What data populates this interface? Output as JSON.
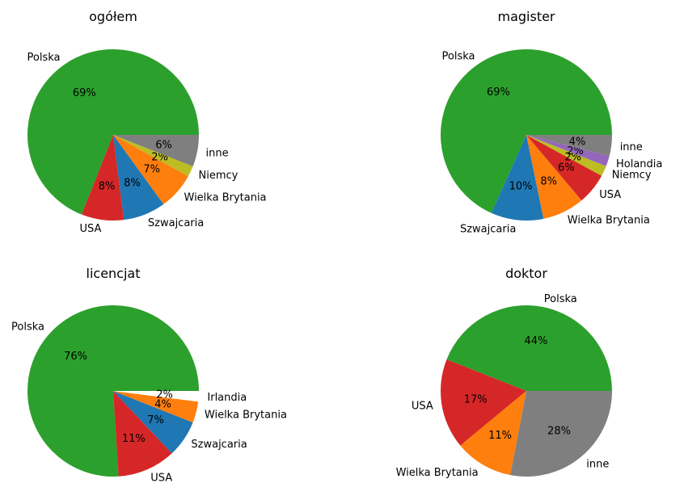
{
  "chart_data": [
    {
      "type": "pie",
      "title": "ogółem",
      "slices": [
        {
          "label": "Polska",
          "value": 69,
          "pct_label": "69%",
          "color": "#2ca02c"
        },
        {
          "label": "USA",
          "value": 8,
          "pct_label": "8%",
          "color": "#d62728"
        },
        {
          "label": "Szwajcaria",
          "value": 8,
          "pct_label": "8%",
          "color": "#1f77b4"
        },
        {
          "label": "Wielka Brytania",
          "value": 7,
          "pct_label": "7%",
          "color": "#ff7f0e"
        },
        {
          "label": "Niemcy",
          "value": 2,
          "pct_label": "2%",
          "color": "#bcbd22"
        },
        {
          "label": "inne",
          "value": 6,
          "pct_label": "6%",
          "color": "#7f7f7f"
        }
      ]
    },
    {
      "type": "pie",
      "title": "magister",
      "slices": [
        {
          "label": "Polska",
          "value": 69,
          "pct_label": "69%",
          "color": "#2ca02c"
        },
        {
          "label": "Szwajcaria",
          "value": 10,
          "pct_label": "10%",
          "color": "#1f77b4"
        },
        {
          "label": "Wielka Brytania",
          "value": 8,
          "pct_label": "8%",
          "color": "#ff7f0e"
        },
        {
          "label": "USA",
          "value": 6,
          "pct_label": "6%",
          "color": "#d62728"
        },
        {
          "label": "Niemcy",
          "value": 2,
          "pct_label": "2%",
          "color": "#bcbd22"
        },
        {
          "label": "Holandia",
          "value": 2,
          "pct_label": "2%",
          "color": "#9467bd"
        },
        {
          "label": "inne",
          "value": 4,
          "pct_label": "4%",
          "color": "#7f7f7f"
        }
      ]
    },
    {
      "type": "pie",
      "title": "licencjat",
      "slices": [
        {
          "label": "Polska",
          "value": 76,
          "pct_label": "76%",
          "color": "#2ca02c"
        },
        {
          "label": "USA",
          "value": 11,
          "pct_label": "11%",
          "color": "#d62728"
        },
        {
          "label": "Szwajcaria",
          "value": 7,
          "pct_label": "7%",
          "color": "#1f77b4"
        },
        {
          "label": "Wielka Brytania",
          "value": 4,
          "pct_label": "4%",
          "color": "#ff7f0e"
        },
        {
          "label": "Irlandia",
          "value": 2,
          "pct_label": "2%",
          "color": "#ffffff"
        }
      ]
    },
    {
      "type": "pie",
      "title": "doktor",
      "slices": [
        {
          "label": "Polska",
          "value": 44,
          "pct_label": "44%",
          "color": "#2ca02c"
        },
        {
          "label": "USA",
          "value": 17,
          "pct_label": "17%",
          "color": "#d62728"
        },
        {
          "label": "Wielka Brytania",
          "value": 11,
          "pct_label": "11%",
          "color": "#ff7f0e"
        },
        {
          "label": "inne",
          "value": 28,
          "pct_label": "28%",
          "color": "#7f7f7f"
        }
      ]
    }
  ]
}
